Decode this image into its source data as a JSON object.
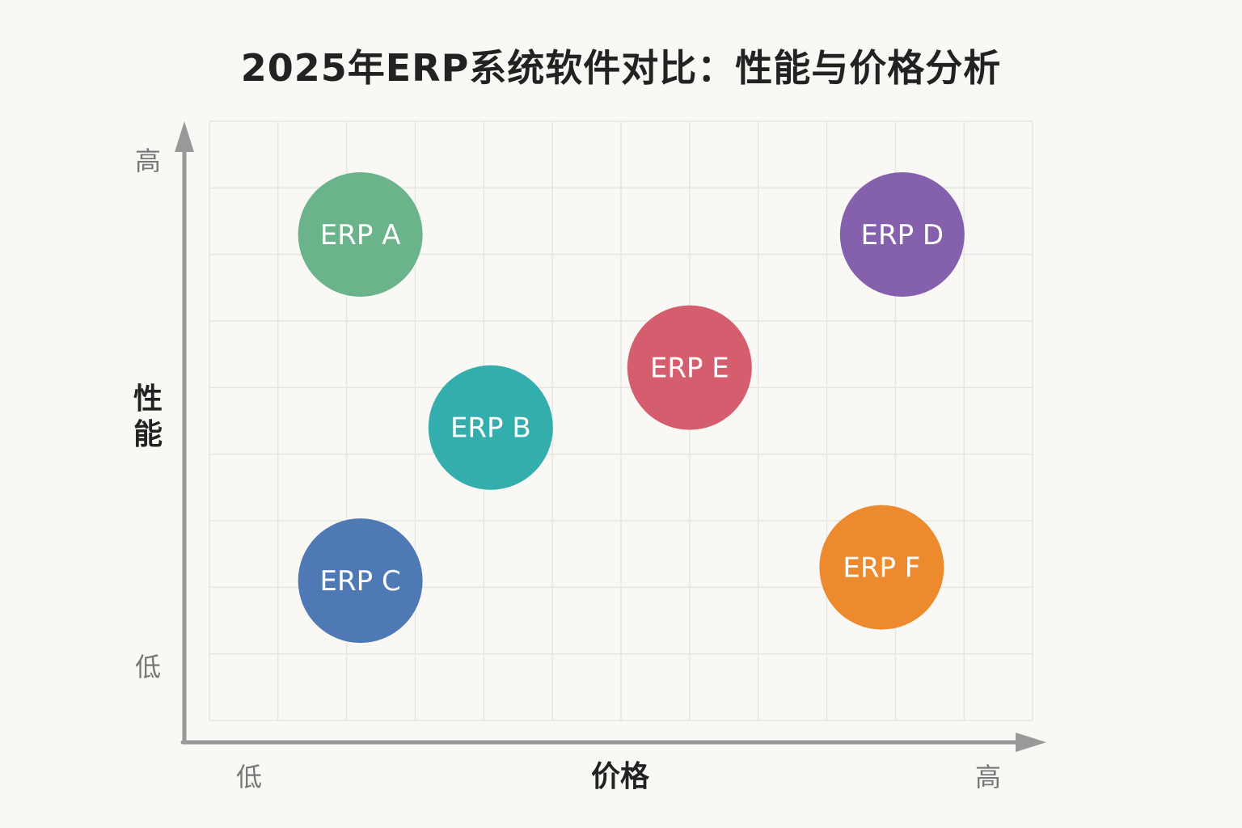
{
  "chart_data": {
    "type": "scatter",
    "title": "2025年ERP系统软件对比：性能与价格分析",
    "xlabel": "价格",
    "ylabel": "性能",
    "x_tick_labels": {
      "low": "低",
      "high": "高"
    },
    "y_tick_labels": {
      "low": "低",
      "high": "高"
    },
    "xlim": [
      0,
      12
    ],
    "ylim": [
      0,
      9
    ],
    "grid": true,
    "legend": "none",
    "points": [
      {
        "label": "ERP A",
        "x": 2.2,
        "y": 7.3,
        "color": "#6bb38a"
      },
      {
        "label": "ERP B",
        "x": 4.1,
        "y": 4.4,
        "color": "#33aeac"
      },
      {
        "label": "ERP C",
        "x": 2.2,
        "y": 2.1,
        "color": "#4e79b5"
      },
      {
        "label": "ERP D",
        "x": 10.1,
        "y": 7.3,
        "color": "#8560ad"
      },
      {
        "label": "ERP E",
        "x": 7.0,
        "y": 5.3,
        "color": "#d45e6d"
      },
      {
        "label": "ERP F",
        "x": 9.8,
        "y": 2.3,
        "color": "#ee8a2e"
      }
    ]
  }
}
